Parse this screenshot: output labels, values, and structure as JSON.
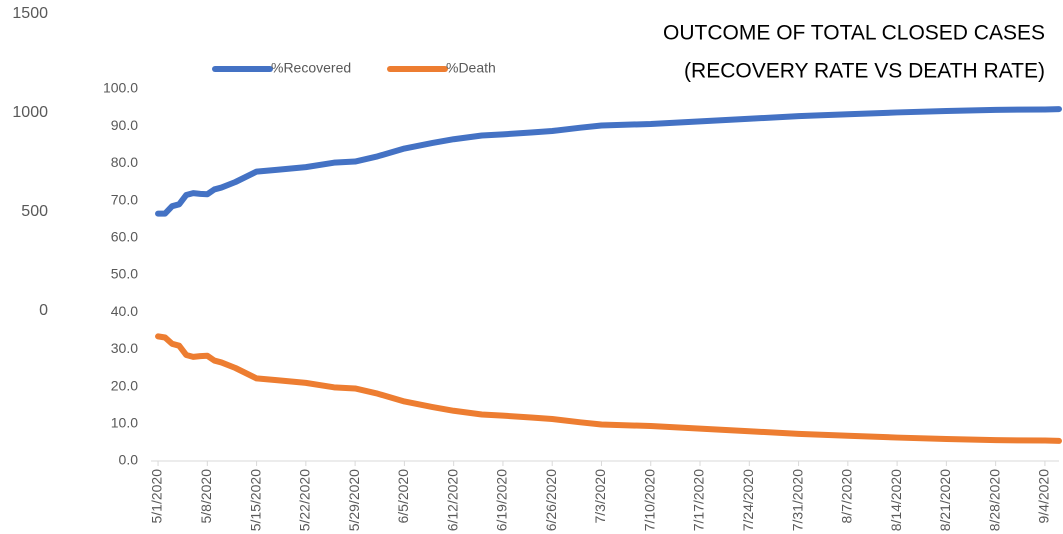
{
  "chart_data": {
    "type": "line",
    "title": [
      "OUTCOME OF TOTAL CLOSED CASES",
      "(RECOVERY RATE VS DEATH RATE)"
    ],
    "x": [
      "5/1/2020",
      "5/2/2020",
      "5/3/2020",
      "5/4/2020",
      "5/5/2020",
      "5/6/2020",
      "5/7/2020",
      "5/8/2020",
      "5/9/2020",
      "5/10/2020",
      "5/12/2020",
      "5/15/2020",
      "5/18/2020",
      "5/22/2020",
      "5/26/2020",
      "5/29/2020",
      "6/1/2020",
      "6/5/2020",
      "6/9/2020",
      "6/12/2020",
      "6/16/2020",
      "6/19/2020",
      "6/23/2020",
      "6/26/2020",
      "6/30/2020",
      "7/3/2020",
      "7/10/2020",
      "7/17/2020",
      "7/24/2020",
      "7/31/2020",
      "8/7/2020",
      "8/14/2020",
      "8/21/2020",
      "8/28/2020",
      "9/4/2020",
      "9/6/2020"
    ],
    "series": [
      {
        "name": "%Recovered",
        "color": "#4472c4",
        "values": [
          66.5,
          66.5,
          68.5,
          69,
          71.5,
          72,
          71.8,
          71.7,
          73,
          73.5,
          75,
          77.8,
          78.3,
          79,
          80.2,
          80.5,
          81.8,
          84,
          85.5,
          86.5,
          87.5,
          87.8,
          88.3,
          88.7,
          89.6,
          90.2,
          90.6,
          91.3,
          92,
          92.7,
          93.2,
          93.7,
          94.1,
          94.4,
          94.5,
          94.6
        ]
      },
      {
        "name": "%Death",
        "color": "#ed7d31",
        "values": [
          33.5,
          33.2,
          31.5,
          31,
          28.5,
          28,
          28.2,
          28.3,
          27,
          26.5,
          25,
          22.2,
          21.7,
          21,
          19.8,
          19.5,
          18.2,
          16,
          14.5,
          13.5,
          12.5,
          12.2,
          11.7,
          11.3,
          10.4,
          9.8,
          9.4,
          8.7,
          8,
          7.3,
          6.8,
          6.3,
          5.9,
          5.6,
          5.5,
          5.4
        ]
      }
    ],
    "xlim": [
      "4/30/2020",
      "9/6/2020"
    ],
    "xticks": [
      "5/1/2020",
      "5/8/2020",
      "5/15/2020",
      "5/22/2020",
      "5/29/2020",
      "6/5/2020",
      "6/12/2020",
      "6/19/2020",
      "6/26/2020",
      "7/3/2020",
      "7/10/2020",
      "7/17/2020",
      "7/24/2020",
      "7/31/2020",
      "8/7/2020",
      "8/14/2020",
      "8/21/2020",
      "8/28/2020",
      "9/4/2020"
    ],
    "ylim": [
      0,
      100
    ],
    "yticks": [
      {
        "value": 0,
        "label": "0.0"
      },
      {
        "value": 10,
        "label": "10.0"
      },
      {
        "value": 20,
        "label": "20.0"
      },
      {
        "value": 30,
        "label": "30.0"
      },
      {
        "value": 40,
        "label": "40.0"
      },
      {
        "value": 50,
        "label": "50.0"
      },
      {
        "value": 60,
        "label": "60.0"
      },
      {
        "value": 70,
        "label": "70.0"
      },
      {
        "value": 80,
        "label": "80.0"
      },
      {
        "value": 90,
        "label": "90.0"
      },
      {
        "value": 100,
        "label": "100.0"
      }
    ],
    "y2lim": [
      0,
      1500
    ],
    "y2ticks": [
      0,
      500,
      1000,
      1500
    ],
    "legend": "top-left"
  }
}
